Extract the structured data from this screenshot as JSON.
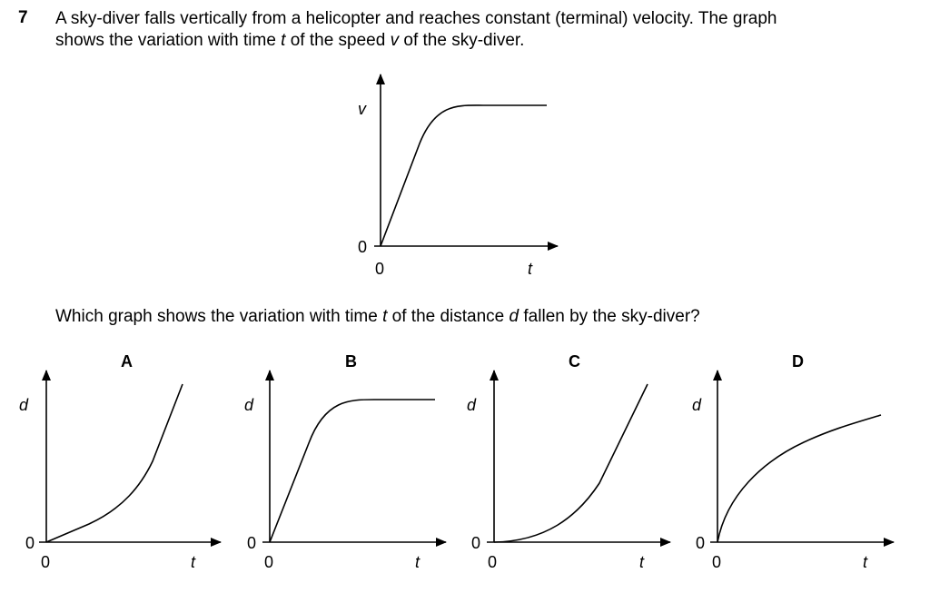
{
  "question": {
    "number": "7",
    "stem": {
      "line1_a": "A sky-diver falls vertically from a helicopter and reaches constant (terminal) velocity. The graph",
      "line2_a": "shows the variation with time ",
      "line2_t": "t",
      "line2_b": " of the speed ",
      "line2_v": "v",
      "line2_c": " of the sky-diver."
    },
    "prompt": {
      "a": "Which graph shows the variation with time ",
      "t": "t",
      "b": " of the distance ",
      "d": "d",
      "c": " fallen by the sky-diver?"
    }
  },
  "main_graph": {
    "y_label": "v",
    "x_label": "t",
    "origin_x_label": "0",
    "origin_y_label": "0",
    "shape": "linear rise then curve levelling to constant speed"
  },
  "options": [
    {
      "letter": "A",
      "y_label": "d",
      "x_label": "t",
      "origin_x_label": "0",
      "origin_y_label": "0",
      "shape": "gentle rise curving upward into straight line"
    },
    {
      "letter": "B",
      "y_label": "d",
      "x_label": "t",
      "origin_x_label": "0",
      "origin_y_label": "0",
      "shape": "linear rise levelling to horizontal"
    },
    {
      "letter": "C",
      "y_label": "d",
      "x_label": "t",
      "origin_x_label": "0",
      "origin_y_label": "0",
      "shape": "curve from zero slope becoming straight line"
    },
    {
      "letter": "D",
      "y_label": "d",
      "x_label": "t",
      "origin_x_label": "0",
      "origin_y_label": "0",
      "shape": "steep start decreasing slope"
    }
  ]
}
